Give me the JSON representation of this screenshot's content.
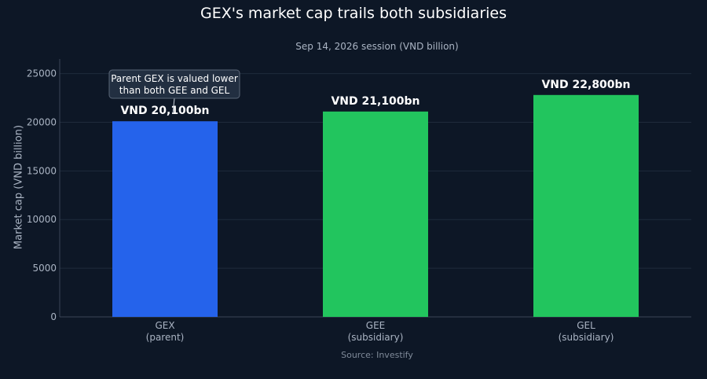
{
  "chart_data": {
    "type": "bar",
    "title": "GEX's market cap trails both subsidiaries",
    "subtitle": "Sep 14, 2026 session (VND billion)",
    "ylabel": "Market cap (VND billion)",
    "xlabel": "",
    "source": "Source: Investify",
    "ylim": [
      0,
      26500
    ],
    "yticks": [
      0,
      5000,
      10000,
      15000,
      20000,
      25000
    ],
    "grid": true,
    "categories": [
      {
        "name": "GEX",
        "sub": "(parent)"
      },
      {
        "name": "GEE",
        "sub": "(subsidiary)"
      },
      {
        "name": "GEL",
        "sub": "(subsidiary)"
      }
    ],
    "values": [
      20100,
      21100,
      22800
    ],
    "data_labels": [
      "VND 20,100bn",
      "VND 21,100bn",
      "VND 22,800bn"
    ],
    "colors": [
      "#2563eb",
      "#22c55e",
      "#22c55e"
    ],
    "annotation": {
      "lines": [
        "Parent GEX is valued lower",
        "than both GEE and GEL"
      ],
      "category_index": 0
    }
  },
  "colors": {
    "background": "#0d1726",
    "grid": "#1f2b3c",
    "axis": "#3a4656",
    "text": "#aab4c3"
  }
}
